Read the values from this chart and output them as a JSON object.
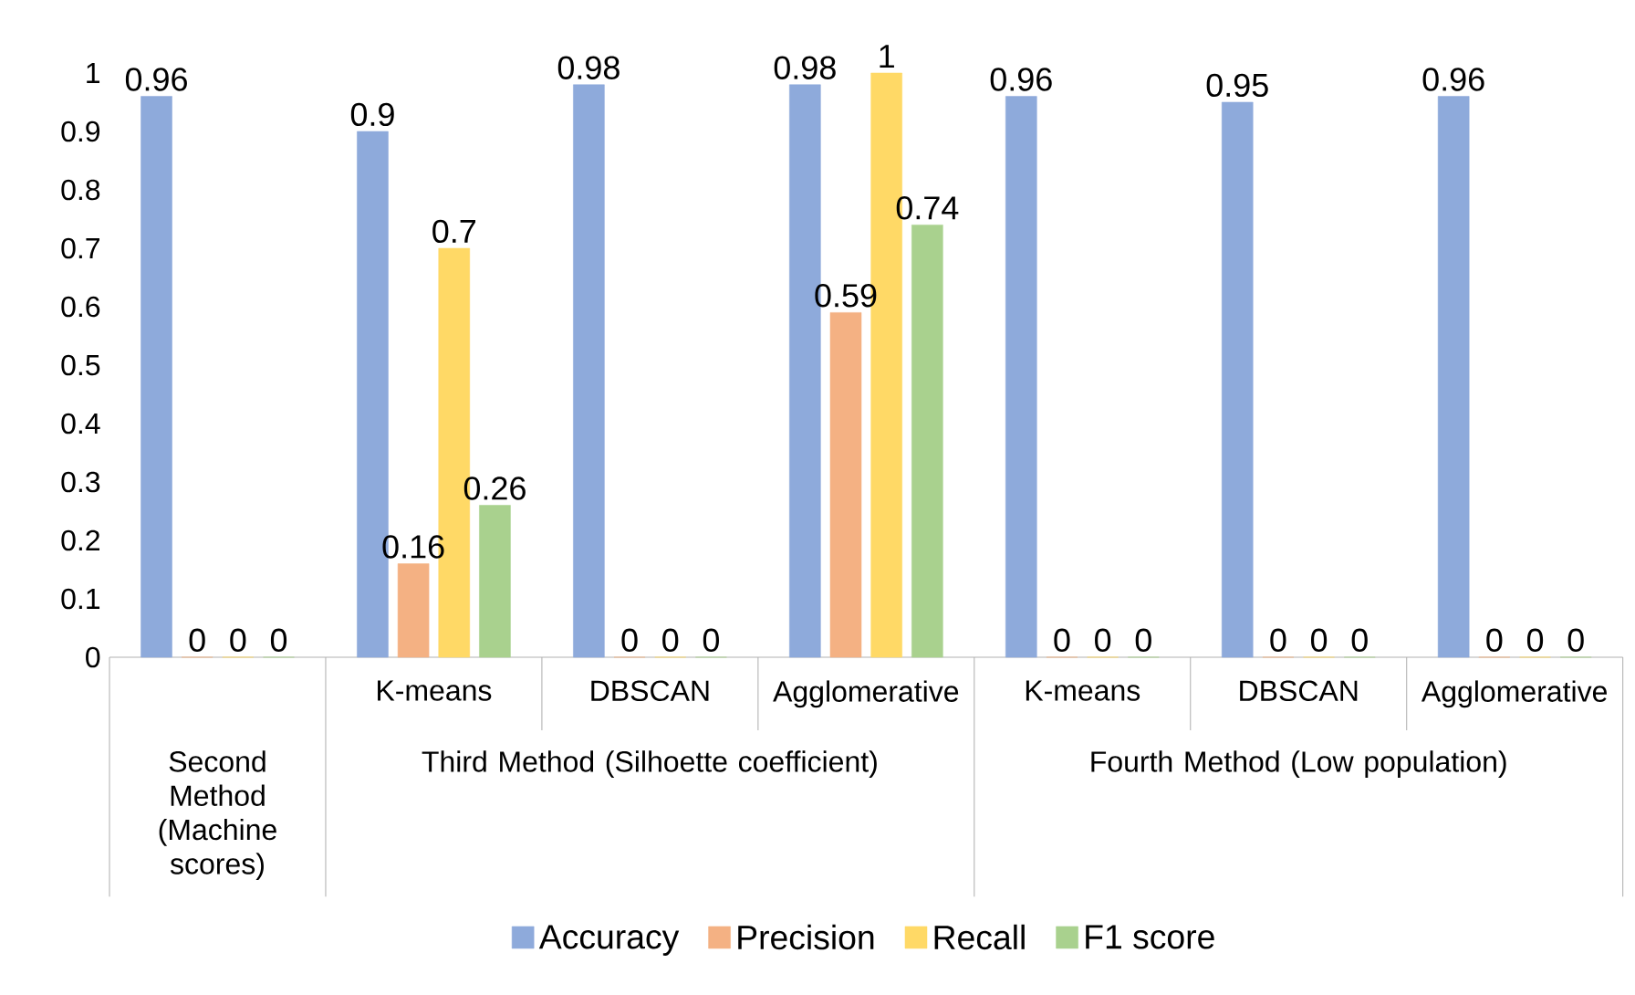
{
  "chart_data": {
    "type": "bar",
    "categories": [
      null,
      "K-means",
      "DBSCAN",
      "Agglomerative",
      "K-means",
      "DBSCAN",
      "Agglomerative"
    ],
    "annotations": [
      "Second Method (Machine scores)",
      "Third Method (Silhoette coefficient)",
      "Fourth Method (Low population)"
    ],
    "series": [
      {
        "name": "Accuracy",
        "color": "#8eaadb",
        "values": [
          0.96,
          0.9,
          0.98,
          0.98,
          0.96,
          0.95,
          0.96
        ],
        "value_labels": [
          "0.96",
          "0.9",
          "0.98",
          "0.98",
          "0.96",
          "0.95",
          "0.96"
        ]
      },
      {
        "name": "Precision",
        "color": "#f4b183",
        "values": [
          0,
          0.16,
          0,
          0.59,
          0,
          0,
          0
        ],
        "value_labels": [
          "0",
          "0.16",
          "0",
          "0.59",
          "0",
          "0",
          "0"
        ]
      },
      {
        "name": "Recall",
        "color": "#ffd966",
        "values": [
          0,
          0.7,
          0,
          1,
          0,
          0,
          0
        ],
        "value_labels": [
          "0",
          "0.7",
          "0",
          "1",
          "0",
          "0",
          "0"
        ]
      },
      {
        "name": "F1 score",
        "color": "#a9d18e",
        "values": [
          0,
          0.26,
          0,
          0.74,
          0,
          0,
          0
        ],
        "value_labels": [
          "0",
          "0.26",
          "0",
          "0.74",
          "0",
          "0",
          "0"
        ]
      }
    ],
    "ylim": [
      0,
      1
    ],
    "yticks": [
      0,
      0.1,
      0.2,
      0.3,
      0.4,
      0.5,
      0.6,
      0.7,
      0.8,
      0.9,
      1
    ],
    "grid": false,
    "legend": "bottom"
  }
}
